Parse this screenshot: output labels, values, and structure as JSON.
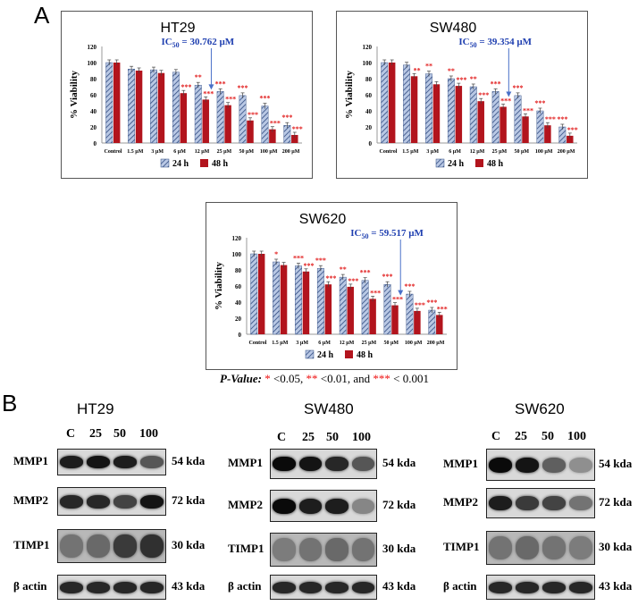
{
  "panel_a_label": "A",
  "panel_b_label": "B",
  "pvalue": {
    "label": "P-Value:",
    "s1": "*",
    "t1": " <0.05, ",
    "s2": "**",
    "t2": " <0.01, and ",
    "s3": "***",
    "t3": " < 0.001"
  },
  "colors": {
    "h24_fill": "#b9c8e4",
    "h24_stripe": "#2f4a80",
    "h48": "#b2141d",
    "star": "#e11b1b",
    "ic50": "#1f3fb0"
  },
  "chart_data": [
    {
      "type": "bar",
      "title": "HT29",
      "ylabel": "% Viability",
      "ylim": [
        0,
        120
      ],
      "yticks": [
        "0",
        "20",
        "40",
        "60",
        "80",
        "100",
        "120"
      ],
      "categories": [
        "Control",
        "1.5 µM",
        "3 µM",
        "6 µM",
        "12 µM",
        "25 µM",
        "50 µM",
        "100 µM",
        "200 µM"
      ],
      "series": [
        {
          "name": "24 h",
          "values": [
            100,
            92,
            91,
            88,
            72,
            64,
            59,
            46,
            22
          ]
        },
        {
          "name": "48 h",
          "values": [
            100,
            90,
            87,
            62,
            54,
            47,
            28,
            17,
            10
          ]
        }
      ],
      "stars_24": [
        "",
        "",
        "",
        "",
        "**",
        "***",
        "***",
        "***",
        "***"
      ],
      "stars_48": [
        "",
        "",
        "",
        "***",
        "***",
        "***",
        "***",
        "***",
        "***"
      ],
      "ic50_label": "IC",
      "ic50_sub": "50",
      "ic50_value": " = 30.762 µM",
      "ic50_arrow_at": 4,
      "legend": "bottom",
      "grid": false
    },
    {
      "type": "bar",
      "title": "SW480",
      "ylabel": "% Viability",
      "ylim": [
        0,
        120
      ],
      "yticks": [
        "0",
        "20",
        "40",
        "60",
        "80",
        "100",
        "120"
      ],
      "categories": [
        "Control",
        "1.5 µM",
        "3 µM",
        "6 µM",
        "12 µM",
        "25 µM",
        "50 µM",
        "100 µM",
        "200 µM"
      ],
      "series": [
        {
          "name": "24 h",
          "values": [
            100,
            97,
            86,
            80,
            70,
            64,
            59,
            40,
            20
          ]
        },
        {
          "name": "48 h",
          "values": [
            100,
            83,
            73,
            71,
            52,
            45,
            33,
            22,
            9
          ]
        }
      ],
      "stars_24": [
        "",
        "",
        "**",
        "**",
        "**",
        "***",
        "***",
        "***",
        "***"
      ],
      "stars_48": [
        "",
        "**",
        "",
        "***",
        "***",
        "***",
        "***",
        "***",
        "***"
      ],
      "ic50_label": "IC",
      "ic50_sub": "50",
      "ic50_value": " = 39.354 µM",
      "ic50_arrow_at": 5,
      "legend": "bottom",
      "grid": false
    },
    {
      "type": "bar",
      "title": "SW620",
      "ylabel": "% Viability",
      "ylim": [
        0,
        120
      ],
      "yticks": [
        "0",
        "20",
        "40",
        "60",
        "80",
        "100",
        "120"
      ],
      "categories": [
        "Control",
        "1.5 µM",
        "3 µM",
        "6 µM",
        "12 µM",
        "25 µM",
        "50 µM",
        "100 µM",
        "200 µM"
      ],
      "series": [
        {
          "name": "24 h",
          "values": [
            100,
            90,
            85,
            82,
            71,
            67,
            62,
            50,
            30
          ]
        },
        {
          "name": "48 h",
          "values": [
            100,
            86,
            78,
            62,
            59,
            44,
            36,
            29,
            24
          ]
        }
      ],
      "stars_24": [
        "",
        "*",
        "***",
        "***",
        "**",
        "***",
        "***",
        "***",
        "***"
      ],
      "stars_48": [
        "",
        "",
        "***",
        "***",
        "***",
        "***",
        "***",
        "***",
        "***"
      ],
      "ic50_label": "IC",
      "ic50_sub": "50",
      "ic50_value": " = 59.517 µM",
      "ic50_arrow_at": 6,
      "legend": "bottom",
      "grid": false
    }
  ],
  "western": [
    {
      "title": "HT29",
      "lanes": [
        "C",
        "25",
        "50",
        "100"
      ],
      "rows": [
        {
          "protein": "MMP1",
          "kda": "54 kda",
          "intensity": [
            0.9,
            0.95,
            0.9,
            0.6
          ]
        },
        {
          "protein": "MMP2",
          "kda": "72 kda",
          "intensity": [
            0.85,
            0.85,
            0.7,
            0.95
          ]
        },
        {
          "protein": "TIMP1",
          "kda": "30 kda",
          "intensity": [
            0.45,
            0.5,
            0.75,
            0.8
          ]
        },
        {
          "protein": "β actin",
          "kda": "43 kda",
          "intensity": [
            0.85,
            0.85,
            0.85,
            0.85
          ]
        }
      ]
    },
    {
      "title": "SW480",
      "lanes": [
        "C",
        "25",
        "50",
        "100"
      ],
      "rows": [
        {
          "protein": "MMP1",
          "kda": "54 kda",
          "intensity": [
            1.0,
            0.95,
            0.85,
            0.6
          ]
        },
        {
          "protein": "MMP2",
          "kda": "72 kda",
          "intensity": [
            1.0,
            0.9,
            0.9,
            0.35
          ]
        },
        {
          "protein": "TIMP1",
          "kda": "30 kda",
          "intensity": [
            0.4,
            0.45,
            0.5,
            0.45
          ]
        },
        {
          "protein": "β actin",
          "kda": "43 kda",
          "intensity": [
            0.85,
            0.85,
            0.85,
            0.85
          ]
        }
      ]
    },
    {
      "title": "SW620",
      "lanes": [
        "C",
        "25",
        "50",
        "100"
      ],
      "rows": [
        {
          "protein": "MMP1",
          "kda": "54 kda",
          "intensity": [
            1.0,
            0.95,
            0.55,
            0.3
          ]
        },
        {
          "protein": "MMP2",
          "kda": "72 kda",
          "intensity": [
            0.9,
            0.75,
            0.7,
            0.45
          ]
        },
        {
          "protein": "TIMP1",
          "kda": "30 kda",
          "intensity": [
            0.45,
            0.5,
            0.45,
            0.4
          ]
        },
        {
          "protein": "β actin",
          "kda": "43 kda",
          "intensity": [
            0.85,
            0.85,
            0.85,
            0.85
          ]
        }
      ]
    }
  ]
}
